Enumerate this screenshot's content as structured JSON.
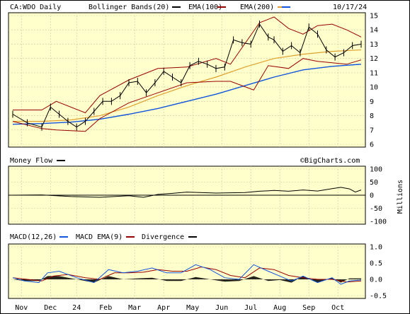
{
  "header": {
    "ticker": "CA:WDO Daily",
    "date": "10/17/24",
    "legend": [
      {
        "label": "Bollinger Bands(20)",
        "color": "#000000"
      },
      {
        "label": "EMA(100)",
        "color": "#990000"
      },
      {
        "label": "EMA(200)",
        "color": "#e0a030"
      },
      {
        "label": "",
        "color": "#1155dd"
      }
    ]
  },
  "watermark": "©BigCharts.com",
  "colors": {
    "panel_bg": "#ffffcc",
    "grid": "#c8c8a0",
    "price": "#000000",
    "bollinger": "#990000",
    "ema100": "#e0a030",
    "ema200": "#1155dd",
    "macd": "#1155dd",
    "macd_ema": "#990000",
    "divergence": "#000000"
  },
  "chart_data": [
    {
      "type": "line",
      "title": "CA:WDO Daily",
      "x_labels": [
        "Nov",
        "Dec",
        "24",
        "Feb",
        "Mar",
        "Apr",
        "May",
        "Jun",
        "Jul",
        "Aug",
        "Sep",
        "Oct"
      ],
      "x_label_positions": [
        0.3,
        1.3,
        2.2,
        3.2,
        4.2,
        5.2,
        6.2,
        7.2,
        8.2,
        9.2,
        10.2,
        11.2
      ],
      "y_ticks": [
        6,
        7,
        8,
        9,
        10,
        11,
        12,
        13,
        14,
        15
      ],
      "ylim": [
        6,
        15
      ],
      "xlim": [
        0,
        12.0
      ],
      "grid": true,
      "series": [
        {
          "name": "Price",
          "x": [
            0.0,
            0.5,
            1.0,
            1.3,
            1.6,
            1.9,
            2.2,
            2.5,
            2.8,
            3.1,
            3.4,
            3.7,
            4.0,
            4.3,
            4.6,
            4.9,
            5.2,
            5.5,
            5.8,
            6.1,
            6.4,
            6.7,
            7.0,
            7.3,
            7.6,
            7.9,
            8.2,
            8.5,
            8.8,
            9.0,
            9.3,
            9.6,
            9.9,
            10.2,
            10.5,
            10.8,
            11.1,
            11.4,
            11.7,
            12.0
          ],
          "values": [
            8.1,
            7.5,
            7.2,
            8.6,
            8.1,
            7.6,
            7.2,
            7.6,
            8.3,
            9.0,
            9.0,
            9.4,
            10.3,
            10.4,
            9.6,
            10.3,
            11.1,
            10.7,
            10.3,
            11.5,
            11.8,
            11.6,
            11.3,
            11.4,
            13.3,
            13.1,
            13.0,
            14.4,
            13.5,
            13.3,
            12.5,
            12.9,
            12.4,
            14.2,
            13.7,
            12.6,
            12.1,
            12.4,
            12.9,
            13.0
          ]
        },
        {
          "name": "Bollinger Upper",
          "x": [
            0.0,
            1.0,
            1.5,
            2.5,
            3.0,
            4.0,
            5.0,
            6.0,
            7.0,
            7.5,
            8.5,
            9.0,
            9.5,
            10.0,
            10.5,
            11.0,
            11.5,
            12.0
          ],
          "values": [
            8.4,
            8.4,
            9.0,
            8.2,
            9.4,
            10.5,
            11.3,
            11.4,
            12.0,
            11.6,
            14.5,
            14.9,
            14.1,
            13.7,
            14.3,
            14.4,
            14.0,
            13.5
          ]
        },
        {
          "name": "Bollinger Lower",
          "x": [
            0.0,
            1.0,
            1.5,
            2.5,
            3.0,
            4.0,
            5.0,
            6.0,
            7.0,
            7.5,
            8.3,
            8.8,
            9.5,
            10.0,
            10.5,
            11.0,
            11.5,
            12.0
          ],
          "values": [
            7.6,
            7.1,
            7.0,
            6.9,
            7.8,
            8.9,
            9.6,
            10.3,
            10.4,
            10.4,
            9.8,
            11.5,
            11.3,
            12.0,
            11.8,
            11.7,
            11.6,
            11.9
          ]
        },
        {
          "name": "EMA(100)",
          "x": [
            0.0,
            1.0,
            2.0,
            3.0,
            4.0,
            5.0,
            6.0,
            7.0,
            8.0,
            9.0,
            10.0,
            11.0,
            12.0
          ],
          "values": [
            7.6,
            7.6,
            7.7,
            8.0,
            8.6,
            9.4,
            10.1,
            10.7,
            11.4,
            12.0,
            12.3,
            12.5,
            12.6
          ]
        },
        {
          "name": "EMA(200)",
          "x": [
            0.0,
            1.0,
            2.0,
            3.0,
            4.0,
            5.0,
            6.0,
            7.0,
            8.0,
            9.0,
            10.0,
            11.0,
            12.0
          ],
          "values": [
            7.4,
            7.45,
            7.55,
            7.75,
            8.1,
            8.5,
            9.0,
            9.5,
            10.1,
            10.7,
            11.2,
            11.45,
            11.6
          ]
        }
      ]
    },
    {
      "type": "line",
      "title": "Money Flow",
      "ylim": [
        -100,
        100
      ],
      "y_ticks": [
        100,
        50,
        0,
        -50,
        -100
      ],
      "ylabel": "Millions",
      "xlim": [
        0,
        12.0
      ],
      "series": [
        {
          "name": "Money Flow",
          "x": [
            0.0,
            1.0,
            2.0,
            3.0,
            4.0,
            4.5,
            5.0,
            5.5,
            6.0,
            7.0,
            8.0,
            8.5,
            9.0,
            9.5,
            10.0,
            10.5,
            11.0,
            11.3,
            11.6,
            11.8,
            12.0
          ],
          "values": [
            0,
            1,
            -5,
            -8,
            -2,
            -8,
            3,
            7,
            12,
            8,
            10,
            15,
            18,
            15,
            20,
            16,
            25,
            30,
            24,
            12,
            20
          ]
        }
      ]
    },
    {
      "type": "line",
      "title": "MACD(12,26)",
      "ylim": [
        -0.5,
        1.0
      ],
      "y_ticks": [
        1.0,
        0.5,
        0.0,
        -0.5
      ],
      "xlim": [
        0,
        12.0
      ],
      "series": [
        {
          "name": "MACD",
          "x": [
            0.0,
            0.4,
            0.9,
            1.2,
            1.6,
            2.2,
            2.8,
            3.3,
            3.8,
            4.3,
            4.8,
            5.3,
            5.8,
            6.3,
            6.8,
            7.3,
            7.8,
            8.3,
            8.8,
            9.2,
            9.6,
            10.0,
            10.5,
            11.0,
            11.3,
            11.6,
            12.0
          ],
          "values": [
            0.05,
            -0.05,
            -0.1,
            0.2,
            0.25,
            0.05,
            -0.1,
            0.3,
            0.2,
            0.25,
            0.35,
            0.2,
            0.2,
            0.45,
            0.3,
            0.05,
            0.0,
            0.45,
            0.25,
            0.1,
            -0.05,
            0.1,
            -0.1,
            0.05,
            -0.15,
            -0.05,
            -0.02
          ]
        },
        {
          "name": "MACD EMA(9)",
          "x": [
            0.0,
            0.5,
            1.0,
            1.4,
            1.9,
            2.5,
            3.0,
            3.5,
            4.0,
            4.5,
            5.0,
            5.5,
            6.0,
            6.5,
            7.0,
            7.5,
            8.0,
            8.5,
            9.0,
            9.5,
            10.0,
            10.5,
            11.0,
            11.5,
            12.0
          ],
          "values": [
            0.05,
            0.0,
            -0.05,
            0.1,
            0.15,
            0.05,
            0.0,
            0.2,
            0.2,
            0.22,
            0.3,
            0.25,
            0.25,
            0.38,
            0.3,
            0.12,
            0.05,
            0.35,
            0.3,
            0.12,
            0.05,
            0.0,
            0.0,
            -0.08,
            -0.05
          ]
        },
        {
          "name": "Divergence",
          "x": [
            0.0,
            0.4,
            0.9,
            1.2,
            1.6,
            2.2,
            2.8,
            3.3,
            3.8,
            4.3,
            4.8,
            5.3,
            5.8,
            6.3,
            6.8,
            7.3,
            7.8,
            8.3,
            8.8,
            9.2,
            9.6,
            10.0,
            10.5,
            11.0,
            11.3,
            11.6,
            12.0
          ],
          "values": [
            0.0,
            -0.05,
            -0.05,
            0.1,
            0.1,
            0.0,
            -0.1,
            0.1,
            0.0,
            0.03,
            0.05,
            -0.05,
            -0.05,
            0.07,
            0.0,
            -0.07,
            -0.05,
            0.1,
            -0.05,
            -0.02,
            -0.1,
            0.1,
            -0.1,
            0.05,
            -0.1,
            0.03,
            0.03
          ]
        }
      ]
    }
  ],
  "panels": {
    "money_flow_label": "Money Flow",
    "macd_legend": [
      {
        "label": "MACD(12,26)",
        "color": "#1155dd"
      },
      {
        "label": "MACD EMA(9)",
        "color": "#990000"
      },
      {
        "label": "Divergence",
        "color": "#000000"
      }
    ]
  }
}
